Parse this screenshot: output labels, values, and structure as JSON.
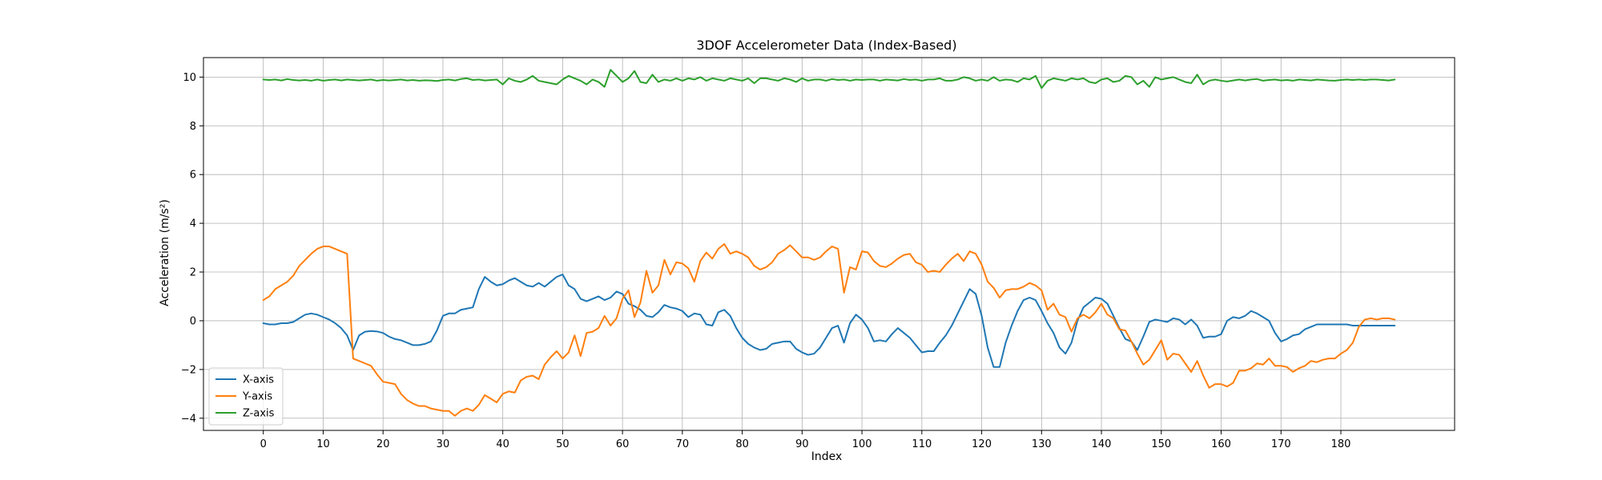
{
  "chart_data": {
    "type": "line",
    "title": "3DOF Accelerometer Data (Index-Based)",
    "xlabel": "Index",
    "ylabel": "Acceleration (m/s²)",
    "xlim": [
      -10,
      199
    ],
    "ylim": [
      -4.5,
      10.8
    ],
    "x_ticks": [
      0,
      10,
      20,
      30,
      40,
      50,
      60,
      70,
      80,
      90,
      100,
      110,
      120,
      130,
      140,
      150,
      160,
      170,
      180
    ],
    "x_tick_labels": [
      "0",
      "10",
      "20",
      "30",
      "40",
      "50",
      "60",
      "70",
      "80",
      "90",
      "100",
      "110",
      "120",
      "130",
      "140",
      "150",
      "160",
      "170",
      "180"
    ],
    "y_ticks": [
      -4,
      -2,
      0,
      2,
      4,
      6,
      8,
      10
    ],
    "y_tick_labels": [
      "−4",
      "−2",
      "0",
      "2",
      "4",
      "6",
      "8",
      "10"
    ],
    "grid": true,
    "legend_position": "lower-left",
    "series": [
      {
        "name": "X-axis",
        "color": "#1f77b4",
        "values": [
          -0.1,
          -0.15,
          -0.15,
          -0.1,
          -0.1,
          -0.05,
          0.1,
          0.25,
          0.3,
          0.25,
          0.15,
          0.05,
          -0.1,
          -0.3,
          -0.6,
          -1.2,
          -0.6,
          -0.45,
          -0.42,
          -0.44,
          -0.5,
          -0.65,
          -0.75,
          -0.8,
          -0.9,
          -1.0,
          -1.0,
          -0.95,
          -0.85,
          -0.4,
          0.2,
          0.3,
          0.3,
          0.45,
          0.5,
          0.55,
          1.3,
          1.8,
          1.6,
          1.45,
          1.5,
          1.65,
          1.75,
          1.6,
          1.45,
          1.4,
          1.55,
          1.4,
          1.6,
          1.8,
          1.9,
          1.45,
          1.3,
          0.9,
          0.8,
          0.9,
          1.0,
          0.85,
          0.95,
          1.2,
          1.1,
          0.7,
          0.6,
          0.45,
          0.2,
          0.15,
          0.35,
          0.65,
          0.55,
          0.5,
          0.4,
          0.15,
          0.3,
          0.25,
          -0.15,
          -0.2,
          0.35,
          0.45,
          0.2,
          -0.3,
          -0.7,
          -0.95,
          -1.1,
          -1.2,
          -1.15,
          -0.95,
          -0.9,
          -0.85,
          -0.85,
          -1.15,
          -1.3,
          -1.4,
          -1.35,
          -1.1,
          -0.7,
          -0.3,
          -0.2,
          -0.9,
          -0.1,
          0.25,
          0.05,
          -0.3,
          -0.85,
          -0.8,
          -0.85,
          -0.55,
          -0.3,
          -0.5,
          -0.7,
          -1.0,
          -1.3,
          -1.25,
          -1.25,
          -0.9,
          -0.6,
          -0.2,
          0.3,
          0.8,
          1.3,
          1.1,
          0.2,
          -1.1,
          -1.9,
          -1.9,
          -0.9,
          -0.2,
          0.4,
          0.85,
          0.95,
          0.85,
          0.4,
          -0.1,
          -0.5,
          -1.1,
          -1.35,
          -0.9,
          0.0,
          0.55,
          0.75,
          0.95,
          0.9,
          0.7,
          0.2,
          -0.3,
          -0.75,
          -0.85,
          -1.2,
          -0.65,
          -0.05,
          0.05,
          0.0,
          -0.05,
          0.1,
          0.05,
          -0.15,
          0.05,
          -0.2,
          -0.7,
          -0.65,
          -0.65,
          -0.55,
          0.0,
          0.15,
          0.1,
          0.2,
          0.4,
          0.3,
          0.15,
          0.0,
          -0.5,
          -0.85,
          -0.75,
          -0.6,
          -0.55,
          -0.35,
          -0.25,
          -0.15,
          -0.15,
          -0.15,
          -0.15,
          -0.15,
          -0.15,
          -0.2,
          -0.2,
          -0.2,
          -0.2,
          -0.2,
          -0.2,
          -0.2,
          -0.2
        ]
      },
      {
        "name": "Y-axis",
        "color": "#ff7f0e",
        "values": [
          0.85,
          1.0,
          1.3,
          1.45,
          1.6,
          1.85,
          2.25,
          2.5,
          2.75,
          2.95,
          3.05,
          3.05,
          2.95,
          2.85,
          2.75,
          -1.55,
          -1.65,
          -1.75,
          -1.85,
          -2.2,
          -2.5,
          -2.55,
          -2.6,
          -3.0,
          -3.25,
          -3.4,
          -3.5,
          -3.5,
          -3.6,
          -3.65,
          -3.7,
          -3.7,
          -3.9,
          -3.7,
          -3.6,
          -3.7,
          -3.45,
          -3.05,
          -3.2,
          -3.35,
          -3.0,
          -2.9,
          -2.95,
          -2.45,
          -2.3,
          -2.25,
          -2.4,
          -1.8,
          -1.5,
          -1.25,
          -1.55,
          -1.3,
          -0.6,
          -1.45,
          -0.5,
          -0.45,
          -0.3,
          0.2,
          -0.2,
          0.1,
          0.9,
          1.25,
          0.15,
          0.75,
          2.05,
          1.15,
          1.45,
          2.5,
          1.9,
          2.4,
          2.35,
          2.15,
          1.6,
          2.45,
          2.8,
          2.55,
          2.95,
          3.15,
          2.75,
          2.85,
          2.75,
          2.6,
          2.25,
          2.1,
          2.2,
          2.4,
          2.75,
          2.9,
          3.1,
          2.85,
          2.6,
          2.6,
          2.5,
          2.6,
          2.85,
          3.05,
          2.95,
          1.15,
          2.2,
          2.1,
          2.85,
          2.8,
          2.45,
          2.25,
          2.2,
          2.35,
          2.55,
          2.7,
          2.75,
          2.4,
          2.3,
          2.0,
          2.05,
          2.0,
          2.3,
          2.55,
          2.75,
          2.45,
          2.85,
          2.75,
          2.3,
          1.6,
          1.35,
          0.95,
          1.25,
          1.3,
          1.3,
          1.4,
          1.55,
          1.45,
          1.25,
          0.45,
          0.7,
          0.25,
          0.15,
          -0.45,
          0.1,
          0.25,
          0.1,
          0.35,
          0.7,
          0.25,
          0.1,
          -0.35,
          -0.4,
          -0.85,
          -1.35,
          -1.8,
          -1.6,
          -1.2,
          -0.8,
          -1.6,
          -1.35,
          -1.4,
          -1.75,
          -2.1,
          -1.65,
          -2.25,
          -2.75,
          -2.6,
          -2.6,
          -2.7,
          -2.55,
          -2.05,
          -2.05,
          -1.95,
          -1.75,
          -1.8,
          -1.55,
          -1.85,
          -1.85,
          -1.9,
          -2.1,
          -1.95,
          -1.85,
          -1.65,
          -1.7,
          -1.6,
          -1.55,
          -1.55,
          -1.35,
          -1.2,
          -0.9,
          -0.25,
          0.05,
          0.1,
          0.05,
          0.1,
          0.1,
          0.05
        ]
      },
      {
        "name": "Z-axis",
        "color": "#2ca02c",
        "values": [
          9.9,
          9.88,
          9.9,
          9.86,
          9.92,
          9.88,
          9.86,
          9.88,
          9.85,
          9.9,
          9.85,
          9.88,
          9.9,
          9.86,
          9.9,
          9.88,
          9.86,
          9.88,
          9.9,
          9.85,
          9.88,
          9.86,
          9.88,
          9.9,
          9.86,
          9.88,
          9.85,
          9.87,
          9.86,
          9.84,
          9.88,
          9.9,
          9.86,
          9.92,
          9.95,
          9.88,
          9.9,
          9.86,
          9.88,
          9.9,
          9.7,
          9.95,
          9.85,
          9.8,
          9.9,
          10.05,
          9.85,
          9.8,
          9.75,
          9.7,
          9.9,
          10.05,
          9.95,
          9.85,
          9.7,
          9.9,
          9.8,
          9.6,
          10.3,
          10.05,
          9.8,
          9.95,
          10.25,
          9.8,
          9.75,
          10.1,
          9.8,
          9.9,
          9.85,
          9.95,
          9.85,
          9.95,
          9.9,
          10.0,
          9.85,
          9.95,
          9.9,
          9.85,
          9.95,
          9.9,
          9.85,
          9.95,
          9.75,
          9.95,
          9.95,
          9.9,
          9.85,
          9.95,
          9.9,
          9.8,
          9.95,
          9.85,
          9.9,
          9.9,
          9.85,
          9.92,
          9.88,
          9.9,
          9.85,
          9.9,
          9.88,
          9.9,
          9.9,
          9.85,
          9.9,
          9.88,
          9.86,
          9.92,
          9.88,
          9.9,
          9.85,
          9.9,
          9.9,
          9.95,
          9.85,
          9.85,
          9.9,
          10.0,
          9.95,
          9.85,
          9.9,
          9.85,
          10.0,
          9.85,
          9.9,
          9.88,
          9.8,
          9.95,
          9.9,
          10.05,
          9.55,
          9.85,
          9.95,
          9.9,
          9.85,
          9.95,
          9.9,
          9.95,
          9.8,
          9.75,
          9.9,
          9.95,
          9.8,
          9.85,
          10.05,
          10.0,
          9.7,
          9.85,
          9.6,
          10.0,
          9.9,
          9.95,
          10.0,
          9.9,
          9.8,
          9.75,
          10.1,
          9.7,
          9.85,
          9.9,
          9.85,
          9.82,
          9.86,
          9.9,
          9.86,
          9.9,
          9.92,
          9.85,
          9.88,
          9.9,
          9.86,
          9.88,
          9.85,
          9.9,
          9.88,
          9.86,
          9.9,
          9.88,
          9.86,
          9.85,
          9.88,
          9.9,
          9.88,
          9.9,
          9.88,
          9.9,
          9.9,
          9.88,
          9.86,
          9.9
        ]
      }
    ]
  }
}
